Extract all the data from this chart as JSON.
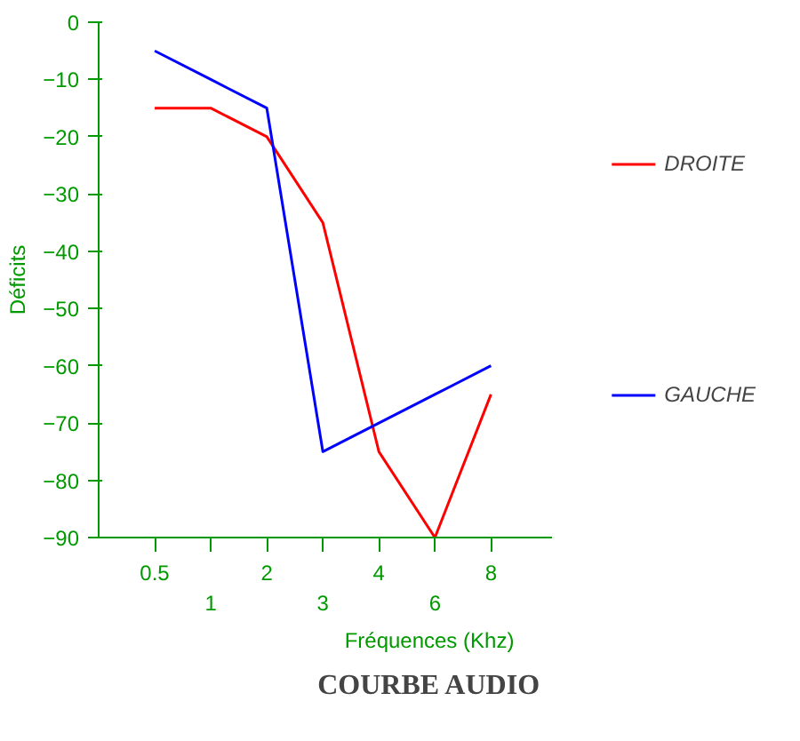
{
  "chart_data": {
    "type": "line",
    "title": "COURBE AUDIO",
    "xlabel": "Fréquences (Khz)",
    "ylabel": "Déficits",
    "categories": [
      "0.5",
      "1",
      "2",
      "3",
      "4",
      "6",
      "8"
    ],
    "series": [
      {
        "name": "DROITE",
        "color": "#ff0000",
        "values": [
          -15,
          -15,
          -20,
          -35,
          -75,
          -90,
          -65
        ]
      },
      {
        "name": "GAUCHE",
        "color": "#0000ff",
        "values": [
          -5,
          -10,
          -15,
          -75,
          -70,
          -65,
          -60
        ]
      }
    ],
    "ylim": [
      -90,
      0
    ],
    "yticks": [
      0,
      -10,
      -20,
      -30,
      -40,
      -50,
      -60,
      -70,
      -80,
      -90
    ],
    "grid": false,
    "legend": "right",
    "marker": "none",
    "line_style": "solid"
  }
}
